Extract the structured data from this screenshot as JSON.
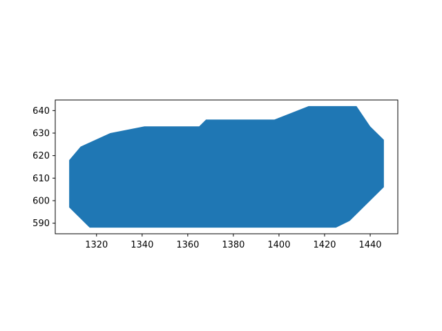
{
  "chart_data": {
    "type": "area",
    "title": "",
    "xlabel": "",
    "ylabel": "",
    "xlim": [
      1301.9,
      1452.1
    ],
    "ylim": [
      585.3,
      644.7
    ],
    "xticks": [
      1320,
      1340,
      1360,
      1380,
      1400,
      1420,
      1440
    ],
    "yticks": [
      590,
      600,
      610,
      620,
      630,
      640
    ],
    "grid": false,
    "legend": "none",
    "color": "#1f77b4",
    "series": [
      {
        "polygon": [
          [
            1308,
            618
          ],
          [
            1313,
            624
          ],
          [
            1326,
            630
          ],
          [
            1341,
            633
          ],
          [
            1365,
            633
          ],
          [
            1368,
            636
          ],
          [
            1398,
            636
          ],
          [
            1413,
            642
          ],
          [
            1434,
            642
          ],
          [
            1440,
            633
          ],
          [
            1446,
            627
          ],
          [
            1446,
            606
          ],
          [
            1431,
            591
          ],
          [
            1425,
            588
          ],
          [
            1317,
            588
          ],
          [
            1308,
            597
          ]
        ]
      }
    ]
  }
}
